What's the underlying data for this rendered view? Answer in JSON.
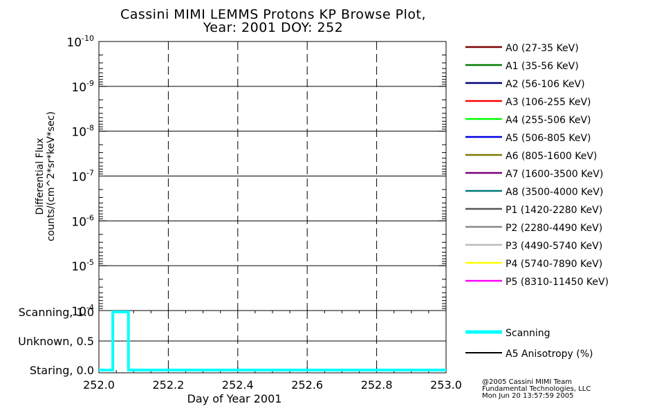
{
  "title": {
    "line1": "Cassini MIMI LEMMS Protons KP Browse Plot,",
    "line2": "Year: 2001 DOY: 252"
  },
  "footer": {
    "line1": "@2005 Cassini MIMI Team",
    "line2": "Fundamental Technologies, LLC",
    "line3": "Mon Jun 20 13:57:59 2005"
  },
  "chart_data": [
    {
      "type": "line",
      "ylabel_line1": "Differential Flux",
      "ylabel_line2": "counts/(cm^2*sr*keV*sec)",
      "y_scale": "log",
      "y_ticks": [
        {
          "base": "10",
          "exp": "-10"
        },
        {
          "base": "10",
          "exp": "-9"
        },
        {
          "base": "10",
          "exp": "-8"
        },
        {
          "base": "10",
          "exp": "-7"
        },
        {
          "base": "10",
          "exp": "-6"
        },
        {
          "base": "10",
          "exp": "-5"
        },
        {
          "base": "10",
          "exp": "-4"
        }
      ],
      "xlim": [
        252.0,
        253.0
      ],
      "grid": true,
      "legend_position": "right",
      "series": [
        {
          "name": "A0 (27-35 KeV)",
          "color": "#7a0000",
          "values": []
        },
        {
          "name": "A1 (35-56 KeV)",
          "color": "#007a00",
          "values": []
        },
        {
          "name": "A2 (56-106 KeV)",
          "color": "#00007a",
          "values": []
        },
        {
          "name": "A3 (106-255 KeV)",
          "color": "#ff0000",
          "values": []
        },
        {
          "name": "A4 (255-506 KeV)",
          "color": "#00ff00",
          "values": []
        },
        {
          "name": "A5 (506-805 KeV)",
          "color": "#0000e0",
          "values": []
        },
        {
          "name": "A6 (805-1600 KeV)",
          "color": "#7a7a00",
          "values": []
        },
        {
          "name": "A7 (1600-3500 KeV)",
          "color": "#7a007a",
          "values": []
        },
        {
          "name": "A8 (3500-4000 KeV)",
          "color": "#007a7a",
          "values": []
        },
        {
          "name": "P1 (1420-2280 KeV)",
          "color": "#555555",
          "values": []
        },
        {
          "name": "P2 (2280-4490 KeV)",
          "color": "#888888",
          "values": []
        },
        {
          "name": "P3 (4490-5740 KeV)",
          "color": "#bbbbbb",
          "values": []
        },
        {
          "name": "P4 (5740-7890 KeV)",
          "color": "#ffff00",
          "values": []
        },
        {
          "name": "P5 (8310-11450 KeV)",
          "color": "#ff00ff",
          "values": []
        }
      ]
    },
    {
      "type": "line",
      "xlabel": "Day of Year 2001",
      "xlim": [
        252.0,
        253.0
      ],
      "ylim": [
        0.0,
        1.0
      ],
      "x_ticks": [
        "252.0",
        "252.2",
        "252.4",
        "252.6",
        "252.8",
        "253.0"
      ],
      "y_ticks": [
        {
          "value": 1.0,
          "label": "Scanning, 1.0"
        },
        {
          "value": 0.5,
          "label": "Unknown, 0.5"
        },
        {
          "value": 0.0,
          "label": "Staring, 0.0"
        }
      ],
      "grid": true,
      "legend_position": "right",
      "series": [
        {
          "name": "Scanning",
          "color": "#00ffff",
          "x": [
            252.0,
            252.04,
            252.04,
            252.085,
            252.085,
            253.0
          ],
          "values": [
            0.0,
            0.0,
            1.0,
            1.0,
            0.0,
            0.0
          ]
        },
        {
          "name": "A5 Anisotropy (%)",
          "color": "#000000",
          "x": [],
          "values": []
        }
      ]
    }
  ]
}
